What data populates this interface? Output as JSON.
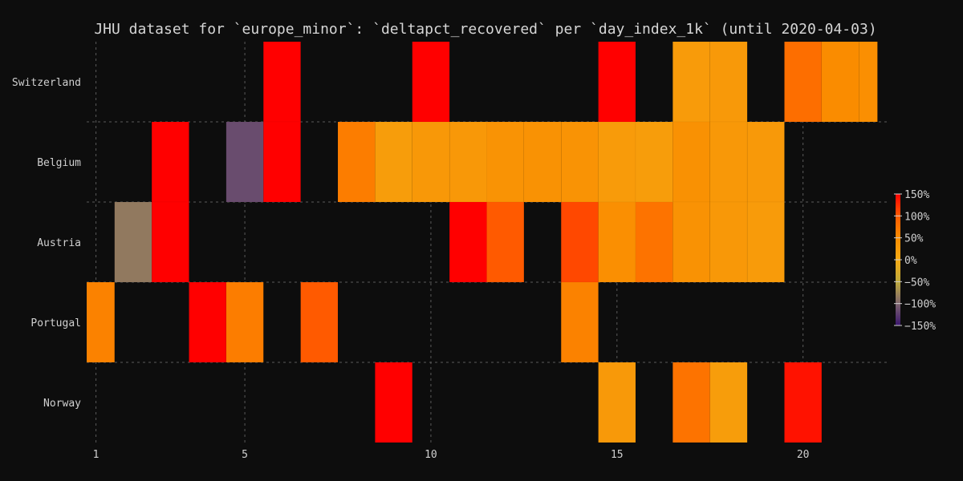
{
  "chart_data": {
    "type": "heatmap",
    "title": "JHU dataset for `europe_minor`: `deltapct_recovered` per `day_index_1k` (until 2020-04-03)",
    "xlabel": "",
    "ylabel": "",
    "x_range": [
      0.75,
      22.25
    ],
    "x_ticks": [
      1,
      5,
      10,
      15,
      20
    ],
    "rows": [
      "Switzerland",
      "Belgium",
      "Austria",
      "Portugal",
      "Norway"
    ],
    "color_scale": {
      "min": -150,
      "max": 150,
      "ticks": [
        150,
        100,
        50,
        0,
        -50,
        -100,
        -150
      ],
      "tick_labels": [
        "150%",
        "100%",
        "50%",
        "0%",
        "−50%",
        "−100%",
        "−150%"
      ]
    },
    "grid": true,
    "cells": [
      {
        "row": "Switzerland",
        "cells": [
          {
            "x0": 5.5,
            "x1": 6.5,
            "value": 150
          },
          {
            "x0": 9.5,
            "x1": 10.5,
            "value": 150
          },
          {
            "x0": 14.5,
            "x1": 15.5,
            "value": 150
          },
          {
            "x0": 16.5,
            "x1": 17.5,
            "value": 25
          },
          {
            "x0": 17.5,
            "x1": 18.5,
            "value": 28
          },
          {
            "x0": 19.5,
            "x1": 20.5,
            "value": 80
          },
          {
            "x0": 20.5,
            "x1": 21.5,
            "value": 50
          },
          {
            "x0": 21.5,
            "x1": 22.0,
            "value": 45
          }
        ]
      },
      {
        "row": "Belgium",
        "cells": [
          {
            "x0": 2.5,
            "x1": 3.5,
            "value": 150
          },
          {
            "x0": 4.5,
            "x1": 5.5,
            "value": -115
          },
          {
            "x0": 5.5,
            "x1": 6.5,
            "value": 150
          },
          {
            "x0": 7.5,
            "x1": 8.5,
            "value": 65
          },
          {
            "x0": 8.5,
            "x1": 9.5,
            "value": 22
          },
          {
            "x0": 9.5,
            "x1": 10.5,
            "value": 30
          },
          {
            "x0": 10.5,
            "x1": 11.5,
            "value": 30
          },
          {
            "x0": 11.5,
            "x1": 12.5,
            "value": 38
          },
          {
            "x0": 12.5,
            "x1": 13.5,
            "value": 40
          },
          {
            "x0": 13.5,
            "x1": 14.5,
            "value": 38
          },
          {
            "x0": 14.5,
            "x1": 15.5,
            "value": 25
          },
          {
            "x0": 15.5,
            "x1": 16.5,
            "value": 22
          },
          {
            "x0": 16.5,
            "x1": 17.5,
            "value": 42
          },
          {
            "x0": 17.5,
            "x1": 18.5,
            "value": 30
          },
          {
            "x0": 18.5,
            "x1": 19.5,
            "value": 28
          }
        ]
      },
      {
        "row": "Austria",
        "cells": [
          {
            "x0": 1.5,
            "x1": 2.5,
            "value": -85
          },
          {
            "x0": 2.5,
            "x1": 3.5,
            "value": 150
          },
          {
            "x0": 10.5,
            "x1": 11.5,
            "value": 150
          },
          {
            "x0": 11.5,
            "x1": 12.5,
            "value": 100
          },
          {
            "x0": 13.5,
            "x1": 14.5,
            "value": 110
          },
          {
            "x0": 14.5,
            "x1": 15.5,
            "value": 45
          },
          {
            "x0": 15.5,
            "x1": 16.5,
            "value": 75
          },
          {
            "x0": 16.5,
            "x1": 17.5,
            "value": 40
          },
          {
            "x0": 17.5,
            "x1": 18.5,
            "value": 30
          },
          {
            "x0": 18.5,
            "x1": 19.5,
            "value": 25
          }
        ]
      },
      {
        "row": "Portugal",
        "cells": [
          {
            "x0": 0.75,
            "x1": 1.5,
            "value": 60
          },
          {
            "x0": 3.5,
            "x1": 4.5,
            "value": 150
          },
          {
            "x0": 4.5,
            "x1": 5.5,
            "value": 65
          },
          {
            "x0": 6.5,
            "x1": 7.5,
            "value": 100
          },
          {
            "x0": 13.5,
            "x1": 14.5,
            "value": 60
          }
        ]
      },
      {
        "row": "Norway",
        "cells": [
          {
            "x0": 8.5,
            "x1": 9.5,
            "value": 150
          },
          {
            "x0": 14.5,
            "x1": 15.5,
            "value": 28
          },
          {
            "x0": 16.5,
            "x1": 17.5,
            "value": 75
          },
          {
            "x0": 17.5,
            "x1": 18.5,
            "value": 22
          },
          {
            "x0": 19.5,
            "x1": 20.5,
            "value": 140
          }
        ]
      }
    ]
  }
}
